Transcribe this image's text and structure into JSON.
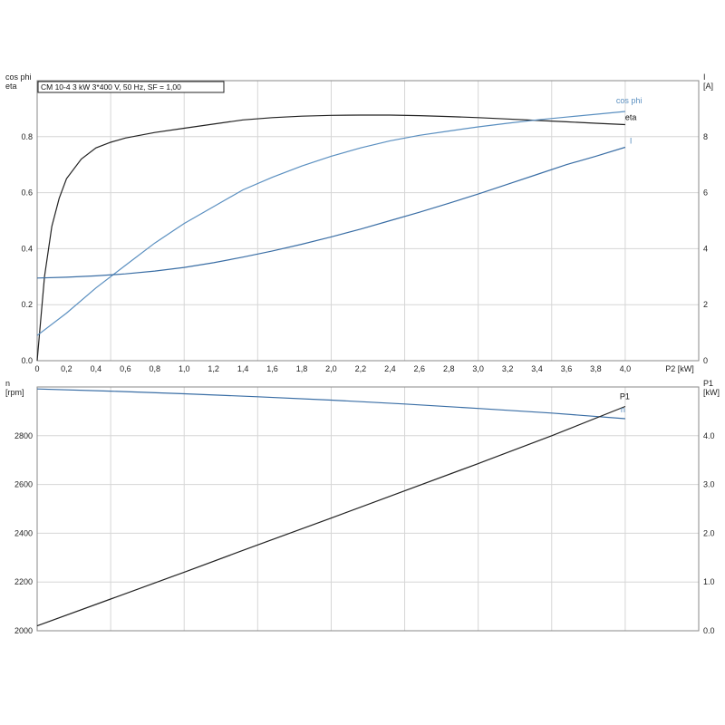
{
  "chart_data": [
    {
      "type": "line",
      "title": "CM 10-4   3 kW   3*400 V, 50 Hz, SF = 1,00",
      "xlabel": "P2 [kW]",
      "ylabel_left": [
        "cos phi",
        "eta"
      ],
      "ylabel_right": [
        "I",
        "[A]"
      ],
      "xlim": [
        0,
        4.5
      ],
      "ylim_left": [
        0,
        1.0
      ],
      "ylim_right": [
        0,
        10
      ],
      "grid": true,
      "xticks": [
        "0",
        "0,2",
        "0,4",
        "0,6",
        "0,8",
        "1,0",
        "1,2",
        "1,4",
        "1,6",
        "1,8",
        "2,0",
        "2,2",
        "2,4",
        "2,6",
        "2,8",
        "3,0",
        "3,2",
        "3,4",
        "3,6",
        "3,8",
        "4,0"
      ],
      "xtick_values": [
        0,
        0.2,
        0.4,
        0.6,
        0.8,
        1.0,
        1.2,
        1.4,
        1.6,
        1.8,
        2.0,
        2.2,
        2.4,
        2.6,
        2.8,
        3.0,
        3.2,
        3.4,
        3.6,
        3.8,
        4.0
      ],
      "yticks_left": [
        "0.0",
        "0.2",
        "0.4",
        "0.6",
        "0.8"
      ],
      "ytick_left_values": [
        0,
        0.2,
        0.4,
        0.6,
        0.8
      ],
      "yticks_right": [
        "0",
        "2",
        "4",
        "6",
        "8"
      ],
      "ytick_right_values": [
        0,
        2,
        4,
        6,
        8
      ],
      "series": [
        {
          "name": "eta",
          "axis": "left",
          "color": "#222222",
          "x": [
            0,
            0.05,
            0.1,
            0.15,
            0.2,
            0.3,
            0.4,
            0.5,
            0.6,
            0.8,
            1.0,
            1.2,
            1.4,
            1.6,
            1.8,
            2.0,
            2.2,
            2.4,
            2.6,
            2.8,
            3.0,
            3.2,
            3.4,
            3.6,
            3.8,
            4.0
          ],
          "y": [
            0.0,
            0.3,
            0.48,
            0.58,
            0.65,
            0.72,
            0.76,
            0.78,
            0.795,
            0.815,
            0.83,
            0.845,
            0.86,
            0.868,
            0.873,
            0.876,
            0.877,
            0.877,
            0.875,
            0.872,
            0.868,
            0.863,
            0.858,
            0.853,
            0.848,
            0.843
          ]
        },
        {
          "name": "cos phi",
          "axis": "left",
          "color": "#5a8fc0",
          "x": [
            0,
            0.2,
            0.4,
            0.6,
            0.8,
            1.0,
            1.2,
            1.4,
            1.6,
            1.8,
            2.0,
            2.2,
            2.4,
            2.6,
            2.8,
            3.0,
            3.2,
            3.4,
            3.6,
            3.8,
            4.0
          ],
          "y": [
            0.09,
            0.17,
            0.26,
            0.34,
            0.42,
            0.49,
            0.55,
            0.61,
            0.655,
            0.695,
            0.73,
            0.76,
            0.785,
            0.805,
            0.82,
            0.835,
            0.848,
            0.86,
            0.87,
            0.88,
            0.89
          ]
        },
        {
          "name": "I",
          "axis": "right",
          "color": "#3a6ea5",
          "x": [
            0,
            0.2,
            0.4,
            0.6,
            0.8,
            1.0,
            1.2,
            1.4,
            1.6,
            1.8,
            2.0,
            2.2,
            2.4,
            2.6,
            2.8,
            3.0,
            3.2,
            3.4,
            3.6,
            3.8,
            4.0
          ],
          "y": [
            2.95,
            2.98,
            3.03,
            3.1,
            3.2,
            3.33,
            3.5,
            3.7,
            3.92,
            4.16,
            4.42,
            4.7,
            5.0,
            5.3,
            5.62,
            5.95,
            6.3,
            6.65,
            7.0,
            7.3,
            7.62
          ]
        }
      ]
    },
    {
      "type": "line",
      "xlim": [
        0,
        4.5
      ],
      "ylabel_left": [
        "n",
        "[rpm]"
      ],
      "ylabel_right": [
        "P1",
        "[kW]"
      ],
      "ylim_left": [
        2000,
        3000
      ],
      "ylim_right": [
        0,
        5.0
      ],
      "grid": true,
      "yticks_left": [
        "2000",
        "2200",
        "2400",
        "2600",
        "2800"
      ],
      "ytick_left_values": [
        2000,
        2200,
        2400,
        2600,
        2800
      ],
      "yticks_right": [
        "0.0",
        "1.0",
        "2.0",
        "3.0",
        "4.0"
      ],
      "ytick_right_values": [
        0,
        1,
        2,
        3,
        4
      ],
      "series": [
        {
          "name": "n",
          "axis": "left",
          "color": "#3a6ea5",
          "x": [
            0,
            0.5,
            1.0,
            1.5,
            2.0,
            2.5,
            3.0,
            3.5,
            4.0
          ],
          "y": [
            2992,
            2983,
            2972,
            2960,
            2946,
            2930,
            2912,
            2893,
            2870
          ]
        },
        {
          "name": "P1",
          "axis": "right",
          "color": "#222222",
          "x": [
            0,
            0.5,
            1.0,
            1.5,
            2.0,
            2.5,
            3.0,
            3.5,
            4.0
          ],
          "y": [
            0.1,
            0.65,
            1.2,
            1.76,
            2.31,
            2.87,
            3.43,
            4.0,
            4.6
          ]
        }
      ]
    }
  ]
}
